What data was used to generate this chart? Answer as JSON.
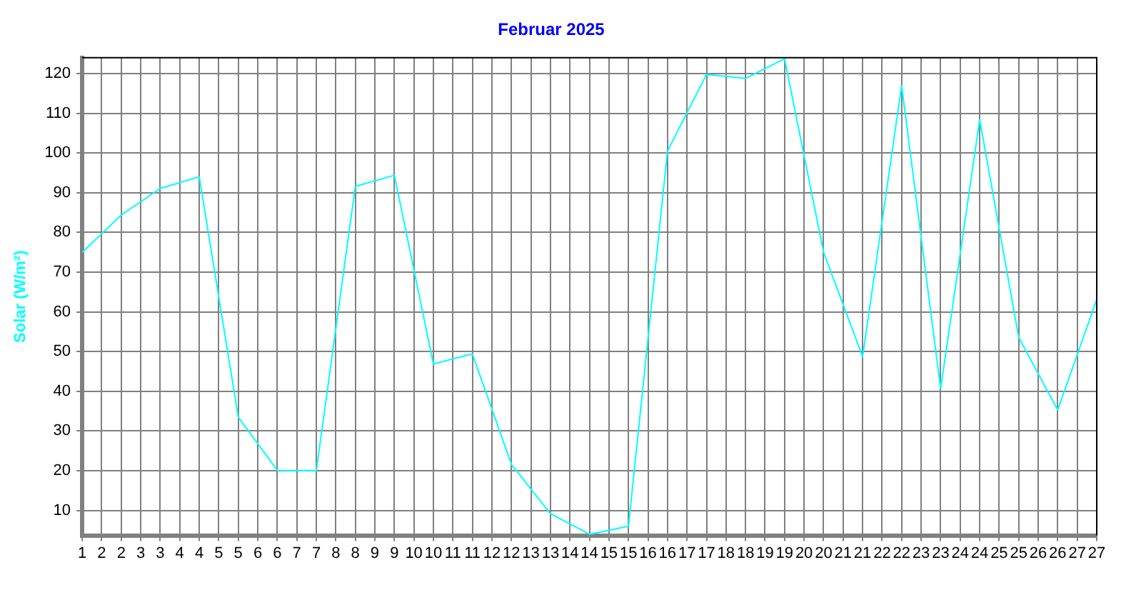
{
  "chart_data": {
    "type": "line",
    "title": "Februar 2025",
    "ylabel": "Solar (W/m²)",
    "x": [
      1,
      2,
      3,
      4,
      5,
      6,
      7,
      8,
      9,
      10,
      11,
      12,
      13,
      14,
      15,
      16,
      17,
      18,
      19,
      20,
      21,
      22,
      23,
      24,
      25,
      26,
      27
    ],
    "series": [
      {
        "color": "#00ffff",
        "values": [
          75,
          84.4,
          91.1,
          94,
          33.5,
          20.1,
          20,
          91.6,
          94.4,
          46.9,
          49.4,
          21.6,
          9.2,
          4,
          6,
          100.5,
          119.8,
          118.8,
          123.7,
          75,
          48.7,
          117,
          40.6,
          108.4,
          53.6,
          35.3,
          63.1
        ]
      }
    ],
    "xlim": [
      1,
      27
    ],
    "xticks": [
      1,
      {
        "value": 1.5,
        "label": "2"
      },
      2,
      {
        "value": 2.5,
        "label": "3"
      },
      3,
      {
        "value": 3.5,
        "label": "4"
      },
      4,
      {
        "value": 4.5,
        "label": "5"
      },
      5,
      {
        "value": 5.5,
        "label": "6"
      },
      6,
      {
        "value": 6.5,
        "label": "7"
      },
      7,
      {
        "value": 7.5,
        "label": "8"
      },
      8,
      {
        "value": 8.5,
        "label": "9"
      },
      9,
      {
        "value": 9.5,
        "label": "10"
      },
      10,
      {
        "value": 10.5,
        "label": "11"
      },
      11,
      {
        "value": 11.5,
        "label": "12"
      },
      12,
      {
        "value": 12.5,
        "label": "13"
      },
      13,
      {
        "value": 13.5,
        "label": "14"
      },
      14,
      {
        "value": 14.5,
        "label": "15"
      },
      15,
      {
        "value": 15.5,
        "label": "16"
      },
      16,
      {
        "value": 16.5,
        "label": "17"
      },
      17,
      {
        "value": 17.5,
        "label": "18"
      },
      18,
      {
        "value": 18.5,
        "label": "19"
      },
      19,
      {
        "value": 19.5,
        "label": "20"
      },
      20,
      {
        "value": 20.5,
        "label": "21"
      },
      21,
      {
        "value": 21.5,
        "label": "22"
      },
      22,
      {
        "value": 22.5,
        "label": "23"
      },
      23,
      {
        "value": 23.5,
        "label": "24"
      },
      24,
      {
        "value": 24.5,
        "label": "25"
      },
      25,
      {
        "value": 25.5,
        "label": "26"
      },
      26,
      {
        "value": 26.5,
        "label": "27"
      },
      27
    ],
    "ylim": [
      3.7,
      124
    ],
    "yticks": [
      10,
      20,
      30,
      40,
      50,
      60,
      70,
      80,
      90,
      100,
      110,
      120
    ],
    "grid": true,
    "legend": false,
    "marker": "none",
    "line_style": "solid"
  }
}
